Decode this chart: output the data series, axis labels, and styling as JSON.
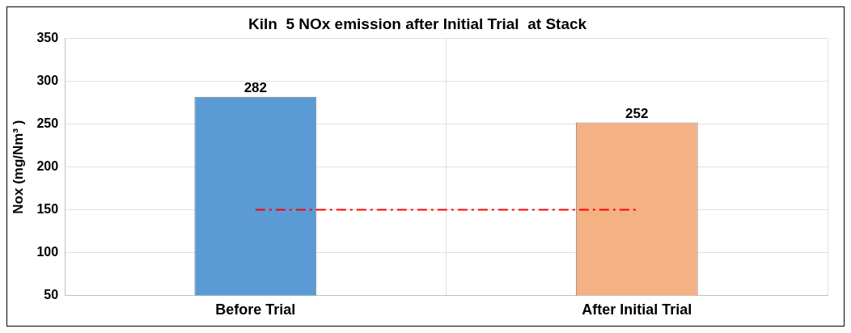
{
  "chart_data": {
    "type": "bar",
    "title": "Kiln  5 NOx emission after Initial Trial  at Stack",
    "ylabel": "Nox (mg/Nm³ )",
    "categories": [
      "Before Trial",
      "After Initial Trial"
    ],
    "values": [
      282,
      252
    ],
    "colors": [
      "#5b9bd5",
      "#f4b183"
    ],
    "ylim": [
      50,
      350
    ],
    "yticks": [
      50,
      100,
      150,
      200,
      250,
      300,
      350
    ],
    "grid": true,
    "data_labels": true,
    "ref_lines": [
      {
        "axis": "y",
        "value": 150,
        "color": "#ff0000",
        "line_style": "dashed"
      }
    ]
  }
}
